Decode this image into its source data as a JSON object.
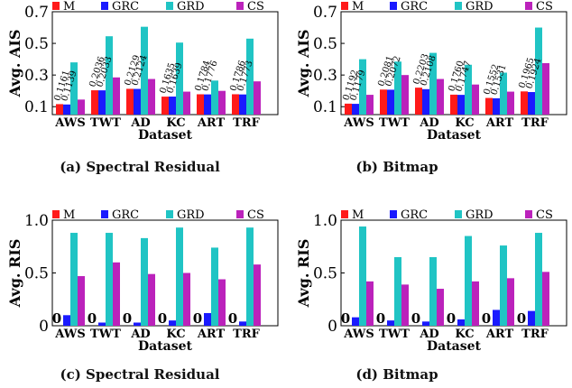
{
  "colors": {
    "M": "#ff1a1a",
    "GRC": "#1a1aff",
    "GRD": "#20c4c4",
    "CS": "#bb22bb"
  },
  "chart_data": [
    {
      "type": "bar",
      "caption": "(a) Spectral Residual",
      "xlabel": "Dataset",
      "ylabel": "Avg. AIS",
      "ylim": [
        0.05,
        0.7
      ],
      "yticks": [
        0.1,
        0.3,
        0.5,
        0.7
      ],
      "ytick_labels": [
        "0.1",
        "0.3",
        "0.5",
        "0.7"
      ],
      "categories": [
        "AWS",
        "TWT",
        "AD",
        "KC",
        "ART",
        "TRF"
      ],
      "legend": [
        "M",
        "GRC",
        "GRD",
        "CS"
      ],
      "series": [
        {
          "name": "M",
          "values": [
            0.1161,
            0.2036,
            0.2129,
            0.1635,
            0.1784,
            0.1786
          ]
        },
        {
          "name": "GRC",
          "values": [
            0.1139,
            0.2033,
            0.2124,
            0.1639,
            0.1776,
            0.1773
          ]
        },
        {
          "name": "GRD",
          "values": [
            0.38,
            0.545,
            0.605,
            0.505,
            0.265,
            0.53
          ]
        },
        {
          "name": "CS",
          "values": [
            0.145,
            0.285,
            0.275,
            0.195,
            0.2,
            0.26
          ]
        }
      ],
      "data_labels": [
        [
          "0.1161",
          "0.2036",
          "0.2129",
          "0.1635",
          "0.1784",
          "0.1786"
        ],
        [
          "0.1139",
          "0.2033",
          "0.2124",
          "0.1639",
          "0.1776",
          "0.1773"
        ]
      ]
    },
    {
      "type": "bar",
      "caption": "(b) Bitmap",
      "xlabel": "Dataset",
      "ylabel": "Avg. AIS",
      "ylim": [
        0.05,
        0.7
      ],
      "yticks": [
        0.1,
        0.3,
        0.5,
        0.7
      ],
      "ytick_labels": [
        "0.1",
        "0.3",
        "0.5",
        "0.7"
      ],
      "categories": [
        "AWS",
        "TWT",
        "AD",
        "KC",
        "ART",
        "TRF"
      ],
      "legend": [
        "M",
        "GRC",
        "GRD",
        "CS"
      ],
      "series": [
        {
          "name": "M",
          "values": [
            0.1192,
            0.2081,
            0.2203,
            0.176,
            0.1552,
            0.1965
          ]
        },
        {
          "name": "GRC",
          "values": [
            0.1179,
            0.2072,
            0.2108,
            0.1747,
            0.1531,
            0.1924
          ]
        },
        {
          "name": "GRD",
          "values": [
            0.4,
            0.385,
            0.44,
            0.365,
            0.315,
            0.6
          ]
        },
        {
          "name": "CS",
          "values": [
            0.175,
            0.3,
            0.275,
            0.24,
            0.195,
            0.375
          ]
        }
      ],
      "data_labels": [
        [
          "0.1192",
          "0.2081",
          "0.2203",
          "0.1760",
          "0.1552",
          "0.1965"
        ],
        [
          "0.1179",
          "0.2072",
          "0.2108",
          "0.1747",
          "0.1531",
          "0.1924"
        ]
      ]
    },
    {
      "type": "bar",
      "caption": "(c) Spectral Residual",
      "xlabel": "Dataset",
      "ylabel": "Avg. RIS",
      "ylim": [
        0,
        1.0
      ],
      "yticks": [
        0,
        0.5,
        1.0
      ],
      "ytick_labels": [
        "0",
        "0.5",
        "1.0"
      ],
      "categories": [
        "AWS",
        "TWT",
        "AD",
        "KC",
        "ART",
        "TRF"
      ],
      "legend": [
        "M",
        "GRC",
        "GRD",
        "CS"
      ],
      "series": [
        {
          "name": "M",
          "values": [
            0,
            0,
            0,
            0,
            0,
            0
          ]
        },
        {
          "name": "GRC",
          "values": [
            0.1,
            0.03,
            0.03,
            0.05,
            0.12,
            0.04
          ]
        },
        {
          "name": "GRD",
          "values": [
            0.88,
            0.88,
            0.83,
            0.93,
            0.74,
            0.93
          ]
        },
        {
          "name": "CS",
          "values": [
            0.47,
            0.6,
            0.49,
            0.5,
            0.44,
            0.58
          ]
        }
      ],
      "data_labels": [
        [
          "0",
          "0",
          "0",
          "0",
          "0",
          "0"
        ]
      ]
    },
    {
      "type": "bar",
      "caption": "(d) Bitmap",
      "xlabel": "Dataset",
      "ylabel": "Avg. RIS",
      "ylim": [
        0,
        1.0
      ],
      "yticks": [
        0,
        0.5,
        1.0
      ],
      "ytick_labels": [
        "0",
        "0.5",
        "1.0"
      ],
      "categories": [
        "AWS",
        "TWT",
        "AD",
        "KC",
        "ART",
        "TRF"
      ],
      "legend": [
        "M",
        "GRC",
        "GRD",
        "CS"
      ],
      "series": [
        {
          "name": "M",
          "values": [
            0,
            0,
            0,
            0,
            0,
            0
          ]
        },
        {
          "name": "GRC",
          "values": [
            0.08,
            0.05,
            0.04,
            0.06,
            0.15,
            0.14
          ]
        },
        {
          "name": "GRD",
          "values": [
            0.94,
            0.65,
            0.65,
            0.85,
            0.76,
            0.88
          ]
        },
        {
          "name": "CS",
          "values": [
            0.42,
            0.39,
            0.35,
            0.42,
            0.45,
            0.51
          ]
        }
      ],
      "data_labels": [
        [
          "0",
          "0",
          "0",
          "0",
          "0",
          "0"
        ]
      ]
    }
  ]
}
